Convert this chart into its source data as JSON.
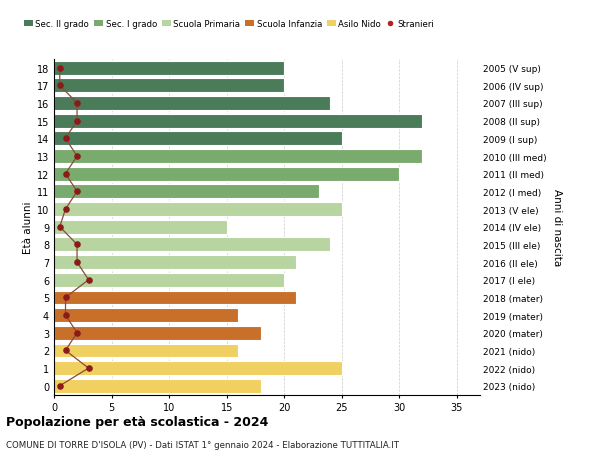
{
  "ages": [
    18,
    17,
    16,
    15,
    14,
    13,
    12,
    11,
    10,
    9,
    8,
    7,
    6,
    5,
    4,
    3,
    2,
    1,
    0
  ],
  "years": [
    "2005 (V sup)",
    "2006 (IV sup)",
    "2007 (III sup)",
    "2008 (II sup)",
    "2009 (I sup)",
    "2010 (III med)",
    "2011 (II med)",
    "2012 (I med)",
    "2013 (V ele)",
    "2014 (IV ele)",
    "2015 (III ele)",
    "2016 (II ele)",
    "2017 (I ele)",
    "2018 (mater)",
    "2019 (mater)",
    "2020 (mater)",
    "2021 (nido)",
    "2022 (nido)",
    "2023 (nido)"
  ],
  "bar_values": [
    20,
    20,
    24,
    32,
    25,
    32,
    30,
    23,
    25,
    15,
    24,
    21,
    20,
    21,
    16,
    18,
    16,
    25,
    18
  ],
  "bar_colors": [
    "#4a7c59",
    "#4a7c59",
    "#4a7c59",
    "#4a7c59",
    "#4a7c59",
    "#7aab6e",
    "#7aab6e",
    "#7aab6e",
    "#b8d4a0",
    "#b8d4a0",
    "#b8d4a0",
    "#b8d4a0",
    "#b8d4a0",
    "#c8702a",
    "#c8702a",
    "#c8702a",
    "#f0d060",
    "#f0d060",
    "#f0d060"
  ],
  "stranieri_values": [
    0.5,
    0.5,
    2,
    2,
    1,
    2,
    1,
    2,
    1,
    0.5,
    2,
    2,
    3,
    1,
    1,
    2,
    1,
    3,
    0.5
  ],
  "legend_labels": [
    "Sec. II grado",
    "Sec. I grado",
    "Scuola Primaria",
    "Scuola Infanzia",
    "Asilo Nido",
    "Stranieri"
  ],
  "legend_colors": [
    "#4a7c59",
    "#7aab6e",
    "#b8d4a0",
    "#c8702a",
    "#f0d060",
    "#b22222"
  ],
  "title": "Popolazione per età scolastica - 2024",
  "subtitle": "COMUNE DI TORRE D'ISOLA (PV) - Dati ISTAT 1° gennaio 2024 - Elaborazione TUTTITALIA.IT",
  "ylabel_left": "Età alunni",
  "ylabel_right": "Anni di nascita",
  "xlim": [
    0,
    37
  ],
  "background_color": "#ffffff",
  "stranieri_dot_color": "#8b1a1a",
  "stranieri_line_color": "#8b4a3a"
}
